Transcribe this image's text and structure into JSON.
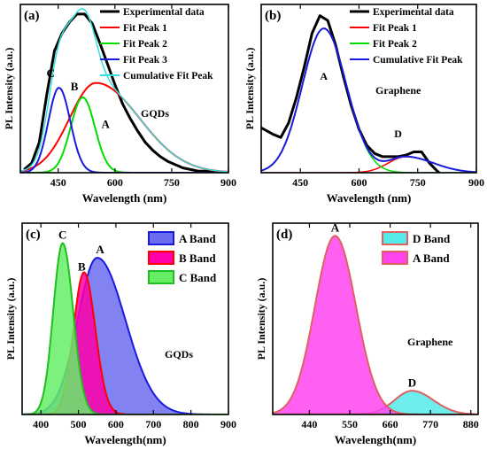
{
  "chart_data": [
    {
      "panel_label": "(a)",
      "type": "line",
      "xlabel": "Wavelength (nm)",
      "ylabel": "PL Intensity (a.u.)",
      "xlim": [
        350,
        900
      ],
      "ylim": [
        0,
        1.05
      ],
      "xticks": [
        450,
        600,
        750,
        900
      ],
      "annotation": "GQDs",
      "series": [
        {
          "name": "Experimental data",
          "color": "#000000",
          "width": 3,
          "kind": "experimental",
          "x": [
            360,
            380,
            400,
            420,
            440,
            460,
            480,
            500,
            520,
            540,
            560,
            580,
            600,
            620,
            640,
            660,
            680,
            700,
            720,
            740,
            760,
            780,
            800,
            820,
            840,
            860,
            880,
            900
          ],
          "y": [
            0.02,
            0.06,
            0.19,
            0.49,
            0.76,
            0.87,
            0.94,
            0.99,
            0.99,
            0.93,
            0.81,
            0.68,
            0.55,
            0.43,
            0.34,
            0.26,
            0.19,
            0.14,
            0.1,
            0.07,
            0.05,
            0.03,
            0.02,
            0.01,
            0.01,
            0.005,
            0.003,
            0.002
          ]
        },
        {
          "name": "Fit Peak 1",
          "color": "#ff0000",
          "width": 2,
          "kind": "gauss",
          "peak_label": "A",
          "center": 550,
          "height": 0.56,
          "sigma_left": 70,
          "sigma_right": 115
        },
        {
          "name": "Fit Peak 2",
          "color": "#00dd00",
          "width": 2,
          "kind": "gauss",
          "peak_label": "B",
          "center": 515,
          "height": 0.47,
          "sigma_left": 32,
          "sigma_right": 32
        },
        {
          "name": "Fit Peak 3",
          "color": "#1a1adf",
          "width": 2,
          "kind": "gauss",
          "peak_label": "C",
          "center": 452,
          "height": 0.53,
          "sigma_left": 28,
          "sigma_right": 30
        },
        {
          "name": "Cumulative Fit Peak",
          "color": "#33e0e0",
          "width": 1.5,
          "kind": "cumulative"
        }
      ]
    },
    {
      "panel_label": "(b)",
      "type": "line",
      "xlabel": "Wavelength (nm)",
      "ylabel": "PL Intensity (a.u.)",
      "xlim": [
        350,
        900
      ],
      "ylim": [
        0,
        1.05
      ],
      "xticks": [
        450,
        600,
        750,
        900
      ],
      "annotation": "Graphene",
      "series": [
        {
          "name": "Experimental data",
          "color": "#000000",
          "width": 3,
          "kind": "experimental",
          "x": [
            350,
            380,
            400,
            420,
            440,
            460,
            480,
            500,
            520,
            540,
            560,
            580,
            600,
            620,
            640,
            660,
            680,
            700,
            720,
            740,
            760,
            780,
            800,
            820,
            840,
            860,
            880,
            900
          ],
          "y": [
            0.28,
            0.24,
            0.22,
            0.31,
            0.47,
            0.66,
            0.87,
            0.98,
            0.95,
            0.8,
            0.6,
            0.42,
            0.27,
            0.17,
            0.12,
            0.1,
            0.1,
            0.1,
            0.11,
            0.13,
            0.13,
            0.06,
            0.01,
            -0.03,
            -0.04,
            -0.05,
            -0.05,
            -0.05
          ]
        },
        {
          "name": "Fit Peak 1",
          "color": "#ff0000",
          "width": 1.5,
          "kind": "gauss",
          "center": 720,
          "height": 0.1,
          "sigma_left": 45,
          "sigma_right": 70
        },
        {
          "name": "Fit Peak 2",
          "color": "#00dd00",
          "width": 1.5,
          "kind": "gauss",
          "center": 510,
          "height": 0.9,
          "sigma_left": 55,
          "sigma_right": 58
        },
        {
          "name": "Cumulative Fit Peak",
          "color": "#1a1adf",
          "width": 2,
          "kind": "cumulative"
        }
      ],
      "peak_labels": [
        {
          "text": "A",
          "x": 510,
          "y": 0.58
        },
        {
          "text": "D",
          "x": 700,
          "y": 0.22
        }
      ]
    },
    {
      "panel_label": "(c)",
      "type": "area",
      "xlabel": "Wavelength(nm)",
      "ylabel": "PL Intensity (a.u.)",
      "xlim": [
        350,
        900
      ],
      "ylim": [
        0,
        1.05
      ],
      "xticks": [
        400,
        500,
        600,
        700,
        800,
        900
      ],
      "annotation": "GQDs",
      "series": [
        {
          "name": "A Band",
          "legend": "A Band",
          "fill": "#6c6cf0",
          "stroke": "#1a1adf",
          "peak_label": "A",
          "center": 550,
          "height": 0.86,
          "sigma_left": 52,
          "sigma_right": 75
        },
        {
          "name": "B Band",
          "legend": "B  Band",
          "fill": "#ff00aa",
          "stroke": "#ff0000",
          "peak_label": "B",
          "center": 515,
          "height": 0.78,
          "sigma_left": 28,
          "sigma_right": 30
        },
        {
          "name": "C Band",
          "legend": "C  Band",
          "fill": "#66ee66",
          "stroke": "#1fbf1f",
          "peak_label": "C",
          "center": 458,
          "height": 0.94,
          "sigma_left": 25,
          "sigma_right": 28
        }
      ]
    },
    {
      "panel_label": "(d)",
      "type": "area",
      "xlabel": "Wavelength(nm)",
      "ylabel": "PL Intensity (a.u.)",
      "xlim": [
        340,
        900
      ],
      "ylim": [
        0,
        1.05
      ],
      "xticks": [
        440,
        550,
        660,
        770,
        880
      ],
      "annotation": "Graphene",
      "series": [
        {
          "name": "D Band",
          "legend": "D Band",
          "fill": "#55eaea",
          "stroke": "#e06060",
          "peak_label": "D",
          "center": 720,
          "height": 0.13,
          "sigma_left": 48,
          "sigma_right": 58
        },
        {
          "name": "A Band",
          "legend": "A Band",
          "fill": "#ff44ee",
          "stroke": "#e06060",
          "peak_label": "A",
          "center": 510,
          "height": 0.98,
          "sigma_left": 55,
          "sigma_right": 57
        }
      ]
    }
  ]
}
